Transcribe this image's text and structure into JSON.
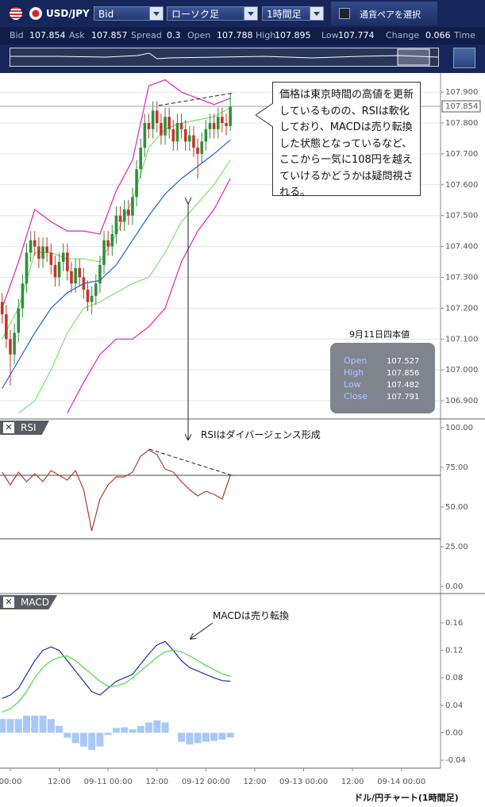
{
  "toolbar": {
    "pair": "USD/JPY",
    "price_type": "Bid",
    "chart_type": "ローソク足",
    "interval": "1時間足",
    "select_pair": "通貨ペアを選択"
  },
  "quote": [
    {
      "label": "Bid",
      "value": 107.854
    },
    {
      "label": "Ask",
      "value": 107.857
    },
    {
      "label": "Spread",
      "value": 0.3
    },
    {
      "label": "Open",
      "value": 107.788
    },
    {
      "label": "High",
      "value": 107.895
    },
    {
      "label": "Low",
      "value": 107.774
    },
    {
      "label": "Change",
      "value": 0.066
    },
    {
      "label": "Time"
    }
  ],
  "callout": "価格は東京時間の高値を更新しているものの、RSIは軟化しており、MACDは売り転換した状態となっているなど、ここから一気に108円を越えていけるかどうかは疑問視される。",
  "ohlc_box": {
    "title": "9月11日四本値",
    "rows": [
      {
        "label": "Open",
        "value": 107.527
      },
      {
        "label": "High",
        "value": 107.856
      },
      {
        "label": "Low",
        "value": 107.482
      },
      {
        "label": "Close",
        "value": 107.791
      }
    ]
  },
  "rsi_note": "RSIはダイバージェンス形成",
  "macd_note": "MACDは売り転換",
  "footer": "ドル/円チャート(1時間足)",
  "chart_data": [
    {
      "type": "candlestick",
      "xlim": [
        -2.53,
        105.6
      ],
      "ylim": [
        106.841,
        107.962
      ],
      "grid": true,
      "yticks": [
        {
          "value": 106.9,
          "label": "106.900"
        },
        {
          "value": 107,
          "label": "107.000"
        },
        {
          "value": 107.1,
          "label": "107.100"
        },
        {
          "value": 107.2,
          "label": "107.200"
        },
        {
          "value": 107.3,
          "label": "107.300"
        },
        {
          "value": 107.4,
          "label": "107.400"
        },
        {
          "value": 107.5,
          "label": "107.500"
        },
        {
          "value": 107.6,
          "label": "107.600"
        },
        {
          "value": 107.7,
          "label": "107.700"
        },
        {
          "value": 107.8,
          "label": "107.800"
        },
        {
          "value": 107.9,
          "label": "107.900"
        }
      ],
      "last_price": 107.854,
      "up_color": "#2f8f3a",
      "down_color": "#c0392b",
      "x": [
        -2,
        -1,
        0,
        1,
        2,
        3,
        4,
        5,
        6,
        7,
        8,
        9,
        10,
        11,
        12,
        13,
        14,
        15,
        16,
        17,
        18,
        19,
        20,
        21,
        22,
        23,
        24,
        25,
        26,
        27,
        28,
        29,
        30,
        31,
        32,
        33,
        34,
        35,
        36,
        37,
        38,
        39,
        40,
        41,
        42,
        43,
        44,
        45,
        46,
        47,
        48,
        49,
        50,
        51,
        52,
        53,
        54
      ],
      "open": [
        107.22,
        107.18,
        107.1,
        107.05,
        107.12,
        107.2,
        107.28,
        107.38,
        107.42,
        107.4,
        107.36,
        107.4,
        107.38,
        107.34,
        107.3,
        107.35,
        107.38,
        107.32,
        107.28,
        107.33,
        107.3,
        107.26,
        107.22,
        107.24,
        107.28,
        107.34,
        107.42,
        107.4,
        107.44,
        107.5,
        107.48,
        107.52,
        107.5,
        107.56,
        107.65,
        107.72,
        107.8,
        107.78,
        107.84,
        107.8,
        107.76,
        107.82,
        107.78,
        107.74,
        107.8,
        107.78,
        107.74,
        107.76,
        107.72,
        107.7,
        107.74,
        107.78,
        107.8,
        107.78,
        107.82,
        107.8,
        107.79
      ],
      "high": [
        107.25,
        107.21,
        107.13,
        107.15,
        107.23,
        107.31,
        107.41,
        107.45,
        107.45,
        107.43,
        107.43,
        107.43,
        107.41,
        107.37,
        107.38,
        107.41,
        107.41,
        107.35,
        107.36,
        107.36,
        107.33,
        107.29,
        107.27,
        107.31,
        107.37,
        107.45,
        107.45,
        107.47,
        107.53,
        107.53,
        107.55,
        107.55,
        107.59,
        107.68,
        107.75,
        107.83,
        107.83,
        107.87,
        107.87,
        107.83,
        107.85,
        107.85,
        107.81,
        107.83,
        107.83,
        107.81,
        107.79,
        107.79,
        107.75,
        107.77,
        107.81,
        107.83,
        107.83,
        107.85,
        107.85,
        107.83,
        107.895
      ],
      "low": [
        107.15,
        107.07,
        106.95,
        107.02,
        107.09,
        107.17,
        107.25,
        107.35,
        107.37,
        107.33,
        107.33,
        107.35,
        107.31,
        107.27,
        107.27,
        107.32,
        107.29,
        107.25,
        107.25,
        107.27,
        107.23,
        107.19,
        107.18,
        107.21,
        107.25,
        107.31,
        107.37,
        107.37,
        107.41,
        107.45,
        107.45,
        107.47,
        107.47,
        107.53,
        107.62,
        107.69,
        107.75,
        107.75,
        107.77,
        107.73,
        107.73,
        107.75,
        107.71,
        107.71,
        107.75,
        107.71,
        107.71,
        107.69,
        107.62,
        107.67,
        107.71,
        107.75,
        107.75,
        107.75,
        107.77,
        107.76,
        107.774
      ],
      "close": [
        107.18,
        107.1,
        107.05,
        107.12,
        107.2,
        107.28,
        107.38,
        107.42,
        107.4,
        107.36,
        107.4,
        107.38,
        107.34,
        107.3,
        107.35,
        107.38,
        107.32,
        107.28,
        107.33,
        107.3,
        107.26,
        107.22,
        107.24,
        107.28,
        107.34,
        107.42,
        107.4,
        107.44,
        107.5,
        107.48,
        107.52,
        107.5,
        107.56,
        107.65,
        107.72,
        107.8,
        107.78,
        107.84,
        107.8,
        107.76,
        107.82,
        107.78,
        107.74,
        107.8,
        107.78,
        107.74,
        107.76,
        107.72,
        107.7,
        107.74,
        107.78,
        107.8,
        107.78,
        107.82,
        107.8,
        107.79,
        107.854
      ],
      "series": [
        {
          "color": "#e020c0",
          "x": [
            -2,
            2,
            6,
            10,
            14,
            18,
            22,
            26,
            30,
            34,
            38,
            42,
            46,
            50,
            54
          ],
          "values": [
            107.2,
            107.35,
            107.52,
            107.48,
            107.45,
            107.45,
            107.44,
            107.58,
            107.68,
            107.92,
            107.94,
            107.9,
            107.88,
            107.86,
            107.88
          ]
        },
        {
          "color": "#7be36a",
          "x": [
            -2,
            2,
            6,
            10,
            14,
            18,
            22,
            26,
            30,
            34,
            38,
            42,
            46,
            50,
            54
          ],
          "values": [
            107.1,
            107.2,
            107.38,
            107.38,
            107.36,
            107.36,
            107.35,
            107.44,
            107.55,
            107.72,
            107.78,
            107.8,
            107.81,
            107.82,
            107.85
          ]
        },
        {
          "color": "#1a62d0",
          "x": [
            -2,
            2,
            6,
            10,
            14,
            18,
            22,
            26,
            30,
            34,
            38,
            42,
            46,
            50,
            54
          ],
          "values": [
            106.94,
            107.03,
            107.12,
            107.2,
            107.25,
            107.28,
            107.29,
            107.34,
            107.42,
            107.5,
            107.57,
            107.62,
            107.66,
            107.7,
            107.745
          ]
        },
        {
          "color": "#7be36a",
          "x": [
            -2,
            2,
            6,
            10,
            14,
            18,
            22,
            26,
            30,
            34,
            38,
            42,
            46,
            50,
            54
          ],
          "values": [
            null,
            106.86,
            106.9,
            107.0,
            107.12,
            107.2,
            107.22,
            107.25,
            107.28,
            107.3,
            107.38,
            107.48,
            107.54,
            107.6,
            107.68
          ]
        },
        {
          "color": "#e020c0",
          "x": [
            -2,
            2,
            6,
            10,
            14,
            18,
            22,
            26,
            30,
            34,
            38,
            42,
            46,
            50,
            54
          ],
          "values": [
            null,
            null,
            null,
            null,
            106.86,
            106.96,
            107.05,
            107.1,
            107.1,
            107.14,
            107.2,
            107.35,
            107.45,
            107.52,
            107.62
          ]
        }
      ]
    },
    {
      "type": "line",
      "title": "RSI",
      "xlim": [
        -2.53,
        105.6
      ],
      "ylim": [
        -4.5,
        105.5
      ],
      "grid": false,
      "yticks": [
        {
          "value": 0,
          "label": "0.00"
        },
        {
          "value": 25,
          "label": "25.00"
        },
        {
          "value": 50,
          "label": "50.00"
        },
        {
          "value": 75,
          "label": "75.00"
        },
        {
          "value": 100,
          "label": "100.00"
        }
      ],
      "levels": [
        70,
        30
      ],
      "series": [
        {
          "color": "#b03a2e",
          "x": [
            -2,
            0,
            2,
            4,
            6,
            8,
            10,
            12,
            14,
            16,
            18,
            20,
            22,
            24,
            26,
            28,
            30,
            32,
            34,
            36,
            38,
            40,
            42,
            44,
            46,
            48,
            50,
            52,
            54
          ],
          "values": [
            72,
            64,
            72,
            66,
            71,
            66,
            73,
            70,
            67,
            73,
            61,
            35,
            55,
            64,
            69,
            69,
            72,
            82,
            86,
            83,
            74,
            72,
            66,
            61,
            57,
            60,
            58,
            55,
            70
          ]
        }
      ]
    },
    {
      "type": "line",
      "title": "MACD",
      "xlim": [
        -2.53,
        105.6
      ],
      "ylim": [
        -0.0515,
        0.2028
      ],
      "grid": false,
      "yticks": [
        -0.04,
        {
          "value": 0,
          "label": "0.00"
        },
        0.04,
        0.08,
        0.12,
        0.16
      ],
      "xticks": [
        {
          "value": 0,
          "label": "00:00"
        },
        {
          "value": 12,
          "label": "12:00"
        },
        {
          "value": 24,
          "label": "09-11 00:00"
        },
        {
          "value": 36,
          "label": "12:00"
        },
        {
          "value": 48,
          "label": "09-12 00:00"
        },
        {
          "value": 60,
          "label": "12:00"
        },
        {
          "value": 72,
          "label": "09-13 00:00"
        },
        {
          "value": 84,
          "label": "12:00"
        },
        {
          "value": 96,
          "label": "09-14 00:00"
        }
      ],
      "series": [
        {
          "kind": "bar",
          "color": "#a9c8f7",
          "x": [
            -2,
            0,
            2,
            4,
            6,
            8,
            10,
            12,
            14,
            16,
            18,
            20,
            22,
            24,
            26,
            28,
            30,
            32,
            34,
            36,
            38,
            40,
            42,
            44,
            46,
            48,
            50,
            52,
            54
          ],
          "values": [
            0.02,
            0.02,
            0.02,
            0.025,
            0.025,
            0.025,
            0.02,
            0.01,
            -0.007,
            -0.015,
            -0.02,
            -0.025,
            -0.02,
            -0.003,
            0.007,
            0.008,
            0.005,
            0.01,
            0.015,
            0.018,
            0.015,
            0,
            -0.013,
            -0.017,
            -0.015,
            -0.013,
            -0.012,
            -0.01,
            -0.007
          ]
        },
        {
          "color": "#1a2fb0",
          "x": [
            -2,
            0,
            2,
            4,
            6,
            8,
            10,
            12,
            14,
            16,
            18,
            20,
            22,
            24,
            26,
            28,
            30,
            32,
            34,
            36,
            38,
            40,
            42,
            44,
            46,
            48,
            50,
            52,
            54
          ],
          "values": [
            0.05,
            0.055,
            0.065,
            0.085,
            0.105,
            0.12,
            0.125,
            0.12,
            0.105,
            0.09,
            0.075,
            0.06,
            0.055,
            0.065,
            0.075,
            0.08,
            0.085,
            0.1,
            0.115,
            0.128,
            0.133,
            0.12,
            0.105,
            0.095,
            0.09,
            0.085,
            0.08,
            0.076,
            0.075
          ]
        },
        {
          "color": "#44dd44",
          "x": [
            -2,
            0,
            2,
            4,
            6,
            8,
            10,
            12,
            14,
            16,
            18,
            20,
            22,
            24,
            26,
            28,
            30,
            32,
            34,
            36,
            38,
            40,
            42,
            44,
            46,
            48,
            50,
            52,
            54
          ],
          "values": [
            0.03,
            0.035,
            0.045,
            0.06,
            0.08,
            0.095,
            0.105,
            0.11,
            0.112,
            0.105,
            0.095,
            0.085,
            0.075,
            0.068,
            0.068,
            0.072,
            0.08,
            0.09,
            0.1,
            0.11,
            0.118,
            0.12,
            0.118,
            0.112,
            0.105,
            0.098,
            0.092,
            0.086,
            0.082
          ]
        }
      ]
    }
  ]
}
